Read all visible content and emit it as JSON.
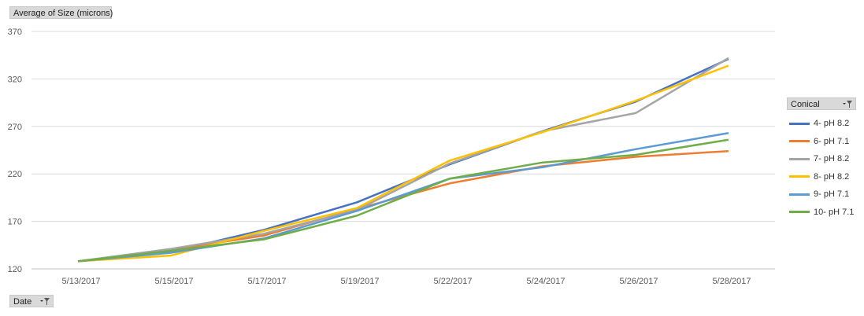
{
  "y_field_label": "Average of Size (microns)",
  "x_field_label": "Date",
  "legend_field_label": "Conical",
  "chart_data": {
    "type": "line",
    "categories": [
      "5/13/2017",
      "5/15/2017",
      "5/17/2017",
      "5/19/2017",
      "5/22/2017",
      "5/24/2017",
      "5/26/2017",
      "5/28/2017"
    ],
    "ylim": [
      120,
      370
    ],
    "yticks": [
      120,
      170,
      220,
      270,
      320,
      370
    ],
    "grid": true,
    "legend_position": "right",
    "series": [
      {
        "name": "4- pH 8.2",
        "color": "#4472c4",
        "values": [
          128,
          138,
          161,
          190,
          230,
          265,
          296,
          341
        ]
      },
      {
        "name": "6- pH 7.1",
        "color": "#ed7d31",
        "values": [
          128,
          140,
          155,
          183,
          210,
          228,
          238,
          244
        ]
      },
      {
        "name": "7- pH 8.2",
        "color": "#a5a5a5",
        "values": [
          128,
          141,
          157,
          182,
          231,
          265,
          284,
          342
        ]
      },
      {
        "name": "8- pH 8.2",
        "color": "#ffc000",
        "values": [
          128,
          134,
          160,
          184,
          234,
          264,
          297,
          334
        ]
      },
      {
        "name": "9- pH 7.1",
        "color": "#5b9bd5",
        "values": [
          128,
          137,
          152,
          181,
          215,
          227,
          246,
          263
        ]
      },
      {
        "name": "10- pH 7.1",
        "color": "#70ad47",
        "values": [
          128,
          139,
          151,
          176,
          215,
          232,
          240,
          256
        ]
      }
    ]
  }
}
